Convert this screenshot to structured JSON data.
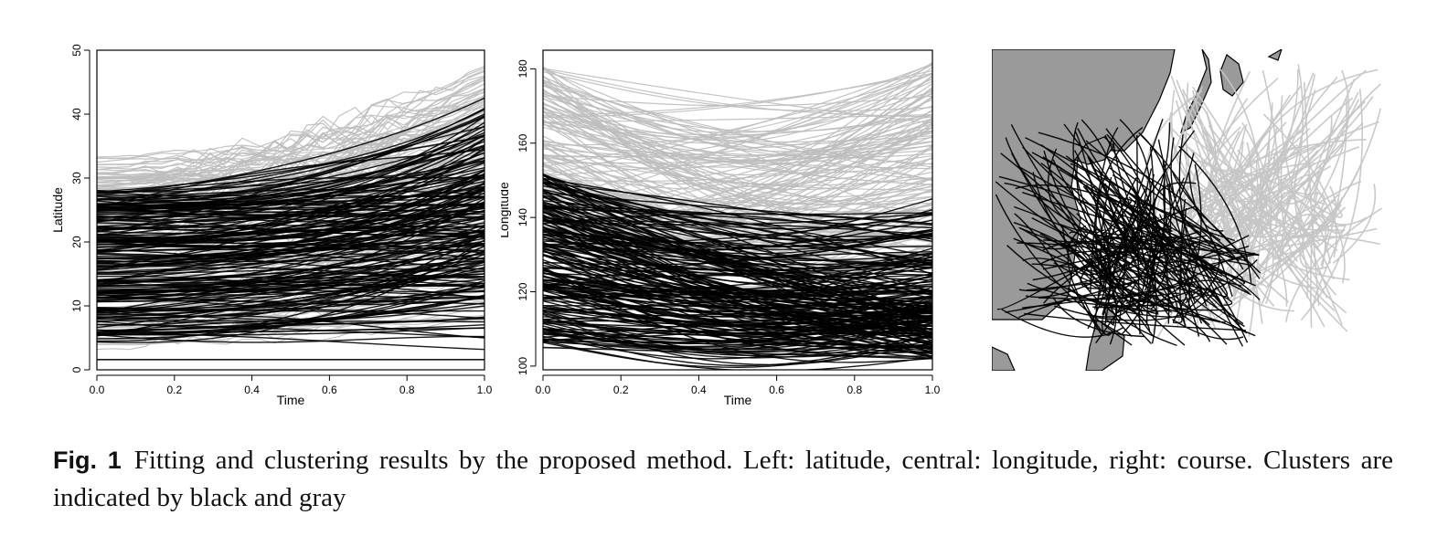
{
  "figure": {
    "label": "Fig. 1",
    "caption": "Fitting and clustering results by the proposed method. Left: latitude, central: longitude, right: course. Clusters are indicated by black and gray"
  },
  "chart_data": [
    {
      "type": "line",
      "panel": "left",
      "xlabel": "Time",
      "ylabel": "Latitude",
      "xlim": [
        0,
        1
      ],
      "ylim": [
        0,
        50
      ],
      "xticks": [
        "0.0",
        "0.2",
        "0.4",
        "0.6",
        "0.8",
        "1.0"
      ],
      "yticks": [
        "0",
        "10",
        "20",
        "30",
        "40",
        "50"
      ],
      "colors": {
        "cluster_black": "#000000",
        "cluster_gray": "#bdbdbd"
      },
      "series_summary": {
        "cluster_black": {
          "start_range": [
            1.5,
            28
          ],
          "end_range": [
            1.5,
            48
          ]
        },
        "cluster_gray": {
          "start_range": [
            4,
            33
          ],
          "end_range": [
            5,
            48
          ]
        }
      }
    },
    {
      "type": "line",
      "panel": "central",
      "xlabel": "Time",
      "ylabel": "Longitude",
      "xlim": [
        0,
        1
      ],
      "ylim": [
        99,
        185
      ],
      "xticks": [
        "0.0",
        "0.2",
        "0.4",
        "0.6",
        "0.8",
        "1.0"
      ],
      "yticks": [
        "100",
        "120",
        "140",
        "160",
        "180"
      ],
      "colors": {
        "cluster_black": "#000000",
        "cluster_gray": "#bdbdbd"
      },
      "series_summary": {
        "cluster_black": {
          "start_range": [
            105,
            155
          ],
          "end_range": [
            102,
            145
          ]
        },
        "cluster_gray": {
          "start_range": [
            135,
            182
          ],
          "end_range": [
            125,
            182
          ]
        }
      }
    },
    {
      "type": "map",
      "panel": "right",
      "colors": {
        "land": "#9a9a9a",
        "cluster_black": "#000000",
        "cluster_gray": "#c6c6c6"
      }
    }
  ]
}
